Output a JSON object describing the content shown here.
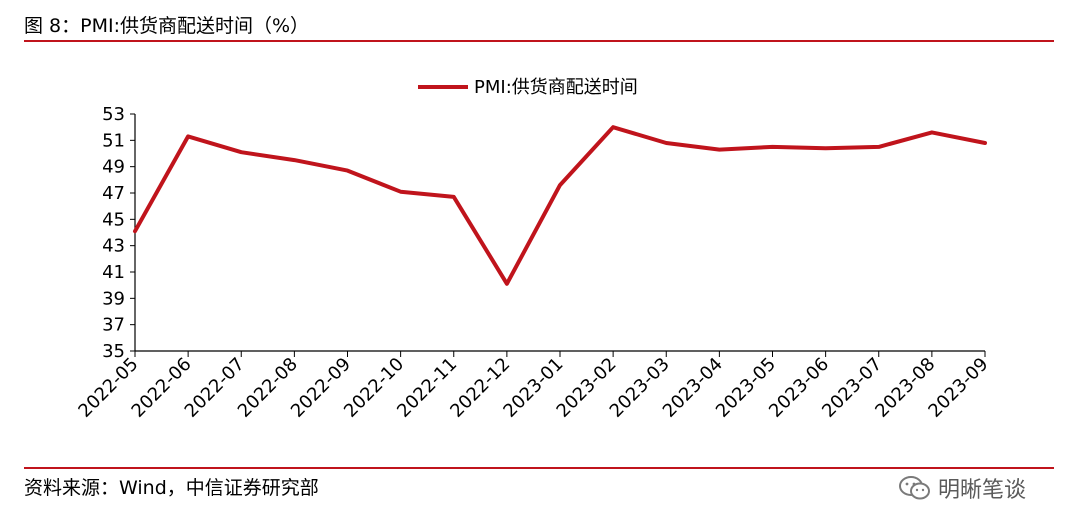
{
  "figure": {
    "title": "图 8：PMI:供货商配送时间（%）",
    "source": "资料来源：Wind，中信证券研究部",
    "watermark": "明晰笔谈"
  },
  "colors": {
    "accent": "#c0141c",
    "line": "#c0141c"
  },
  "chart_data": {
    "type": "line",
    "title": "",
    "xlabel": "",
    "ylabel": "",
    "ylim": [
      35,
      53
    ],
    "yticks": [
      35,
      37,
      39,
      41,
      43,
      45,
      47,
      49,
      51,
      53
    ],
    "categories": [
      "2022-05",
      "2022-06",
      "2022-07",
      "2022-08",
      "2022-09",
      "2022-10",
      "2022-11",
      "2022-12",
      "2023-01",
      "2023-02",
      "2023-03",
      "2023-04",
      "2023-05",
      "2023-06",
      "2023-07",
      "2023-08",
      "2023-09"
    ],
    "series": [
      {
        "name": "PMI:供货商配送时间",
        "values": [
          44.1,
          51.3,
          50.1,
          49.5,
          48.7,
          47.1,
          46.7,
          40.1,
          47.6,
          52.0,
          50.8,
          50.3,
          50.5,
          50.4,
          50.5,
          51.6,
          50.8
        ]
      }
    ],
    "legend": "top-center",
    "grid": false
  }
}
